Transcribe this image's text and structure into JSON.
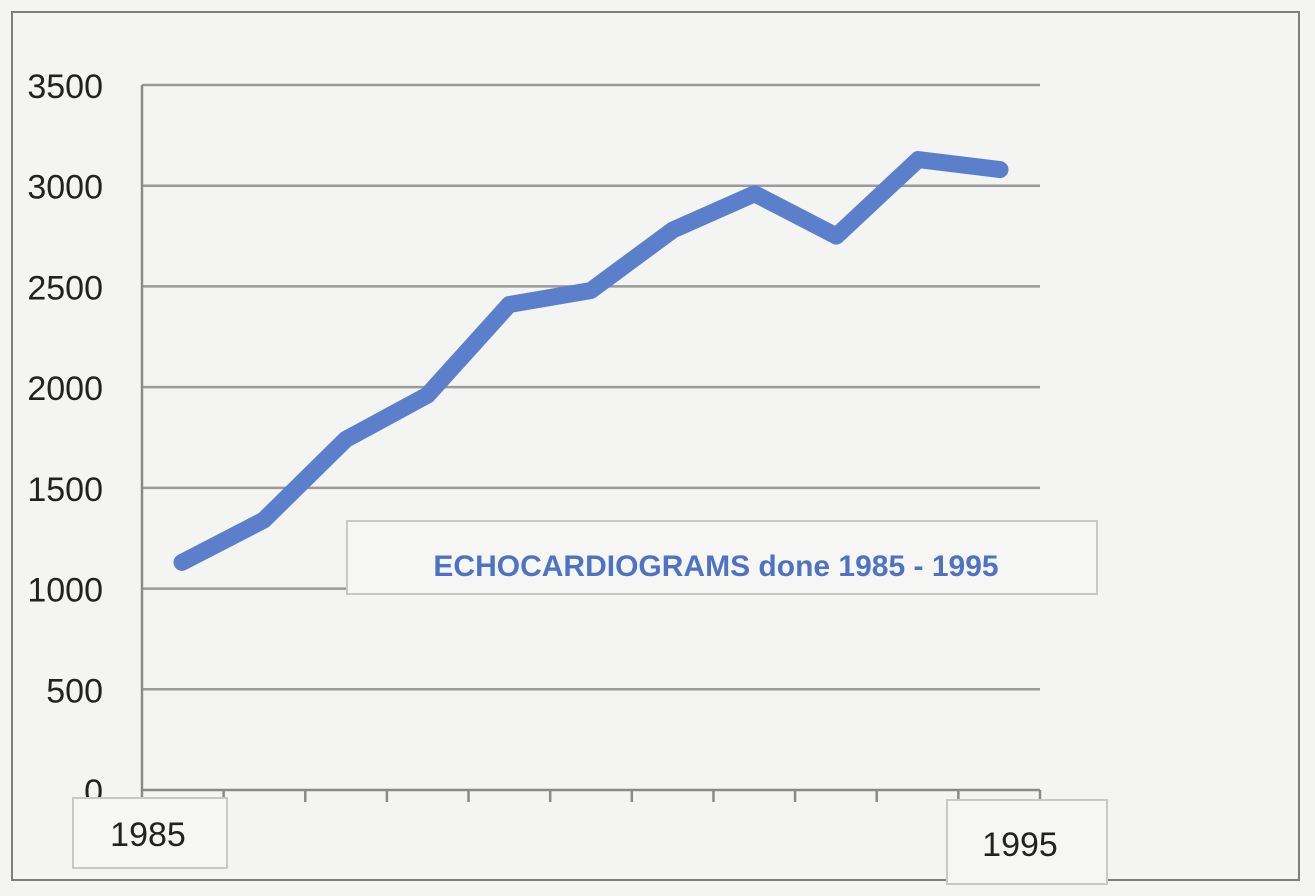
{
  "chart_data": {
    "type": "line",
    "title": "ECHOCARDIOGRAMS done 1985 - 1995",
    "xlabel": "",
    "ylabel": "",
    "ylim": [
      0,
      3500
    ],
    "yticks": [
      0,
      500,
      1000,
      1500,
      2000,
      2500,
      3000,
      3500
    ],
    "ytick_labels": [
      "0",
      "500",
      "1000",
      "1500",
      "2000",
      "2500",
      "3000",
      "3500"
    ],
    "x_tick_count": 11,
    "x_first_label": "1985",
    "x_last_label": "1995",
    "grid": true,
    "series": [
      {
        "values": [
          1130,
          1340,
          1740,
          1960,
          2410,
          2480,
          2780,
          2960,
          2750,
          3130,
          3080
        ]
      }
    ]
  },
  "colors": {
    "line": "#5b7fcb",
    "title": "#4f73c3",
    "grid": "#9a9a9a",
    "axis": "#8a8a8a",
    "background": "#f4f4f2",
    "frame": "#7e7e7e"
  }
}
